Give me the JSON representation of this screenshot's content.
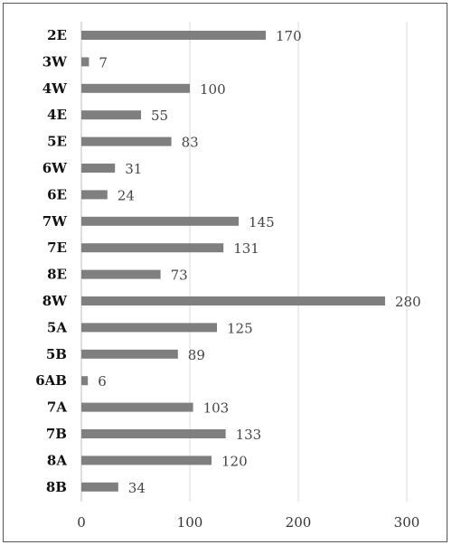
{
  "chart_data": {
    "type": "bar",
    "orientation": "horizontal",
    "categories": [
      "2E",
      "3W",
      "4W",
      "4E",
      "5E",
      "6W",
      "6E",
      "7W",
      "7E",
      "8E",
      "8W",
      "5A",
      "5B",
      "6AB",
      "7A",
      "7B",
      "8A",
      "8B"
    ],
    "values": [
      170,
      7,
      100,
      55,
      83,
      31,
      24,
      145,
      131,
      73,
      280,
      125,
      89,
      6,
      103,
      133,
      120,
      34
    ],
    "xlim": [
      0,
      300
    ],
    "xticks": [
      0,
      100,
      200,
      300
    ],
    "grid": "vertical",
    "bar_color": "#7f7f7f",
    "title": "",
    "xlabel": "",
    "ylabel": ""
  }
}
